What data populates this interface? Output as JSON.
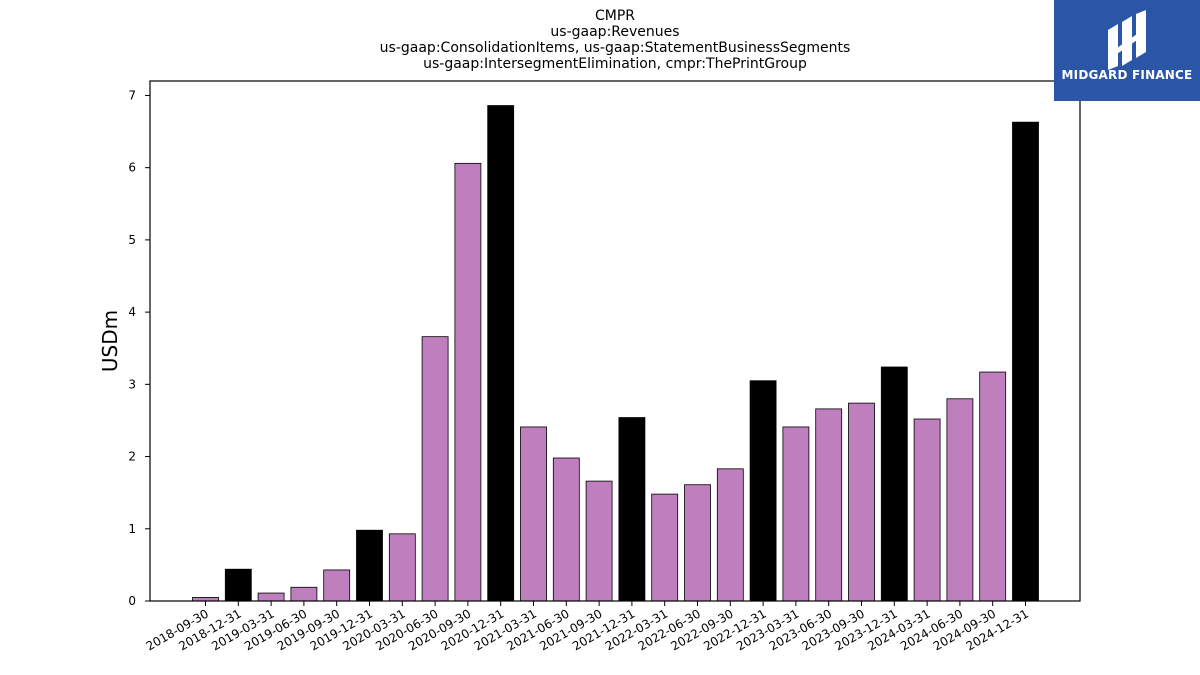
{
  "chart_data": {
    "type": "bar",
    "title_lines": [
      "CMPR",
      "us-gaap:Revenues",
      "us-gaap:ConsolidationItems, us-gaap:StatementBusinessSegments",
      "us-gaap:IntersegmentElimination, cmpr:ThePrintGroup"
    ],
    "ylabel": "USDm",
    "ylim": [
      0,
      7.2
    ],
    "yticks": [
      0,
      1,
      2,
      3,
      4,
      5,
      6,
      7
    ],
    "grid": false,
    "colors": {
      "quarter": "#bf7fbf",
      "year_end": "#000000"
    },
    "categories": [
      "2018-09-30",
      "2018-12-31",
      "2019-03-31",
      "2019-06-30",
      "2019-09-30",
      "2019-12-31",
      "2020-03-31",
      "2020-06-30",
      "2020-09-30",
      "2020-12-31",
      "2021-03-31",
      "2021-06-30",
      "2021-09-30",
      "2021-12-31",
      "2022-03-31",
      "2022-06-30",
      "2022-09-30",
      "2022-12-31",
      "2023-03-31",
      "2023-06-30",
      "2023-09-30",
      "2023-12-31",
      "2024-03-31",
      "2024-06-30",
      "2024-09-30",
      "2024-12-31"
    ],
    "values": [
      0.05,
      0.44,
      0.11,
      0.19,
      0.43,
      0.98,
      0.93,
      3.66,
      6.06,
      6.86,
      2.41,
      1.98,
      1.66,
      2.54,
      1.48,
      1.61,
      1.83,
      3.05,
      2.41,
      2.66,
      2.74,
      3.24,
      2.52,
      2.8,
      3.17,
      6.63
    ]
  },
  "logo": {
    "text": "MIDGARD FINANCE",
    "icon": "midgard-logo-icon"
  }
}
